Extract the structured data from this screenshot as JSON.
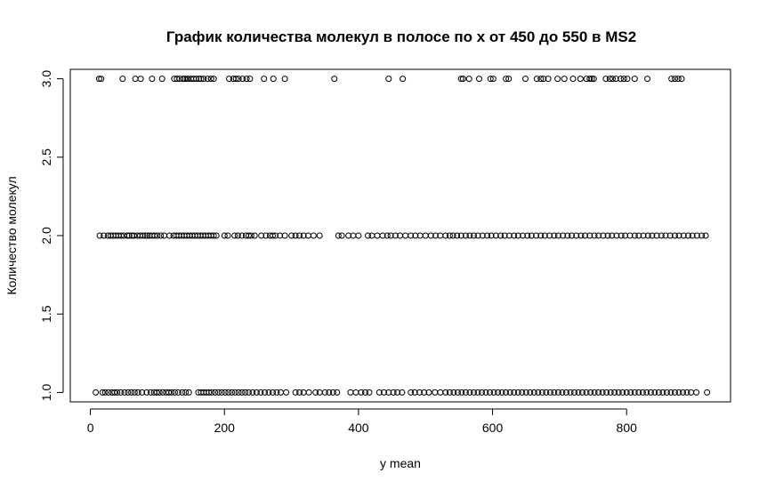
{
  "chart_data": {
    "type": "scatter",
    "title": "График количества молекул в полосе по x от 450 до 550 в MS2",
    "xlabel": "y mean",
    "ylabel": "Количество молекул",
    "xlim": [
      -30,
      955
    ],
    "ylim": [
      0.94,
      3.06
    ],
    "x_ticks": [
      0,
      200,
      400,
      600,
      800
    ],
    "y_ticks": [
      1.0,
      1.5,
      2.0,
      2.5,
      3.0
    ],
    "x_tick_labels": [
      "0",
      "200",
      "400",
      "600",
      "800"
    ],
    "y_tick_labels": [
      "1.0",
      "1.5",
      "2.0",
      "2.5",
      "3.0"
    ],
    "grid": false,
    "marker": "open-circle",
    "series": [
      {
        "y": 3,
        "x": [
          13,
          16,
          48,
          67,
          75,
          92,
          107,
          125,
          129,
          133,
          138,
          141,
          144,
          146,
          150,
          154,
          158,
          162,
          165,
          169,
          175,
          180,
          184,
          207,
          213,
          217,
          221,
          227,
          233,
          238,
          259,
          273,
          290,
          364,
          445,
          466,
          553,
          556,
          565,
          580,
          597,
          601,
          620,
          624,
          649,
          666,
          672,
          676,
          683,
          697,
          707,
          720,
          731,
          740,
          745,
          748,
          751,
          769,
          775,
          779,
          784,
          791,
          796,
          801,
          812,
          831,
          867,
          872,
          877,
          882
        ]
      },
      {
        "y": 2,
        "x": [
          14,
          20,
          26,
          30,
          34,
          38,
          42,
          46,
          50,
          55,
          58,
          62,
          65,
          70,
          74,
          78,
          82,
          85,
          88,
          92,
          96,
          100,
          105,
          110,
          118,
          124,
          128,
          132,
          136,
          140,
          144,
          148,
          152,
          156,
          160,
          164,
          168,
          172,
          176,
          180,
          184,
          188,
          200,
          205,
          215,
          220,
          226,
          232,
          236,
          240,
          245,
          255,
          262,
          268,
          272,
          276,
          283,
          290,
          300,
          306,
          312,
          318,
          325,
          333,
          342,
          370,
          375,
          385,
          392,
          400,
          414,
          420,
          428,
          436,
          443,
          448,
          455,
          462,
          470,
          478,
          485,
          492,
          500,
          508,
          515,
          522,
          530,
          536,
          541,
          547,
          553,
          560,
          566,
          572,
          578,
          585,
          592,
          598,
          605,
          612,
          618,
          625,
          632,
          638,
          645,
          652,
          658,
          665,
          672,
          678,
          685,
          692,
          698,
          705,
          712,
          718,
          725,
          732,
          738,
          745,
          752,
          758,
          765,
          772,
          778,
          785,
          792,
          798,
          805,
          812,
          818,
          825,
          832,
          838,
          845,
          852,
          858,
          865,
          872,
          878,
          885,
          892,
          898,
          905,
          912,
          918
        ]
      },
      {
        "y": 1,
        "x": [
          8,
          18,
          22,
          27,
          32,
          36,
          40,
          45,
          51,
          56,
          61,
          66,
          71,
          77,
          84,
          90,
          95,
          99,
          103,
          108,
          113,
          117,
          121,
          126,
          131,
          137,
          142,
          147,
          161,
          165,
          169,
          173,
          177,
          181,
          186,
          191,
          196,
          201,
          206,
          211,
          216,
          221,
          226,
          231,
          236,
          242,
          248,
          254,
          260,
          266,
          272,
          278,
          284,
          292,
          306,
          312,
          318,
          326,
          336,
          342,
          350,
          356,
          362,
          368,
          388,
          396,
          404,
          410,
          416,
          431,
          438,
          445,
          452,
          458,
          465,
          478,
          484,
          491,
          498,
          505,
          514,
          522,
          530,
          536,
          542,
          548,
          554,
          560,
          566,
          572,
          578,
          584,
          590,
          596,
          602,
          608,
          614,
          620,
          626,
          632,
          638,
          644,
          650,
          656,
          662,
          668,
          674,
          680,
          686,
          692,
          698,
          704,
          710,
          716,
          722,
          728,
          734,
          740,
          746,
          752,
          758,
          764,
          770,
          776,
          782,
          788,
          794,
          800,
          806,
          812,
          818,
          824,
          830,
          836,
          842,
          848,
          854,
          860,
          866,
          872,
          878,
          884,
          890,
          896,
          904,
          920
        ]
      }
    ]
  }
}
